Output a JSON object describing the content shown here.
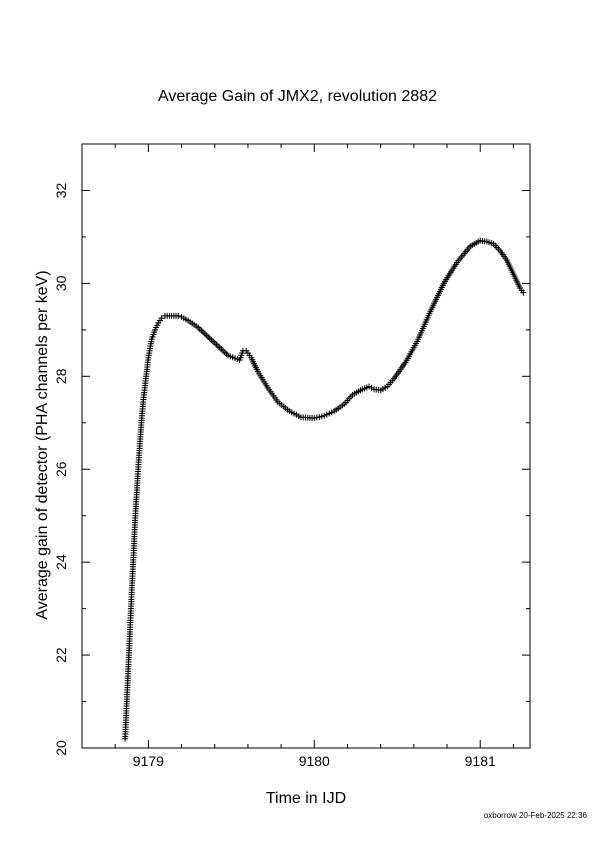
{
  "chart_data": {
    "type": "scatter",
    "marker": "+",
    "title": "Average Gain of JMX2, revolution 2882",
    "xlabel": "Time in IJD",
    "ylabel": "Average gain of detector (PHA channels per keV)",
    "xlim": [
      9178.6,
      9181.3
    ],
    "ylim": [
      20,
      33
    ],
    "xticks": [
      9179,
      9180,
      9181
    ],
    "yticks": [
      20,
      22,
      24,
      26,
      28,
      30,
      32
    ],
    "grid": false,
    "series": [
      {
        "x": [
          9178.86,
          9178.87,
          9178.88,
          9178.89,
          9178.9,
          9178.91,
          9178.92,
          9178.93,
          9178.94,
          9178.95,
          9178.96,
          9178.97,
          9178.98,
          9178.99,
          9179.0,
          9179.02,
          9179.04,
          9179.06,
          9179.08,
          9179.1,
          9179.14,
          9179.18,
          9179.2,
          9179.24,
          9179.3,
          9179.36,
          9179.42,
          9179.48,
          9179.55,
          9179.57,
          9179.59,
          9179.62,
          9179.66,
          9179.72,
          9179.78,
          9179.85,
          9179.92,
          9180.0,
          9180.06,
          9180.12,
          9180.18,
          9180.23,
          9180.29,
          9180.33,
          9180.36,
          9180.4,
          9180.44,
          9180.48,
          9180.55,
          9180.62,
          9180.7,
          9180.78,
          9180.86,
          9180.94,
          9181.0,
          9181.04,
          9181.08,
          9181.12,
          9181.16,
          9181.2,
          9181.24,
          9181.26
        ],
        "y": [
          20.2,
          21.0,
          21.8,
          22.6,
          23.4,
          24.1,
          24.9,
          25.5,
          26.1,
          26.6,
          27.1,
          27.5,
          27.8,
          28.1,
          28.4,
          28.8,
          29.0,
          29.15,
          29.25,
          29.3,
          29.3,
          29.3,
          29.28,
          29.2,
          29.05,
          28.85,
          28.65,
          28.45,
          28.35,
          28.55,
          28.55,
          28.4,
          28.1,
          27.75,
          27.45,
          27.25,
          27.12,
          27.1,
          27.15,
          27.25,
          27.4,
          27.6,
          27.72,
          27.78,
          27.72,
          27.7,
          27.78,
          27.95,
          28.3,
          28.75,
          29.4,
          30.0,
          30.45,
          30.8,
          30.92,
          30.9,
          30.85,
          30.7,
          30.5,
          30.2,
          29.9,
          29.8
        ]
      }
    ]
  },
  "footer": "oxborrow 20-Feb-2025 22:36"
}
